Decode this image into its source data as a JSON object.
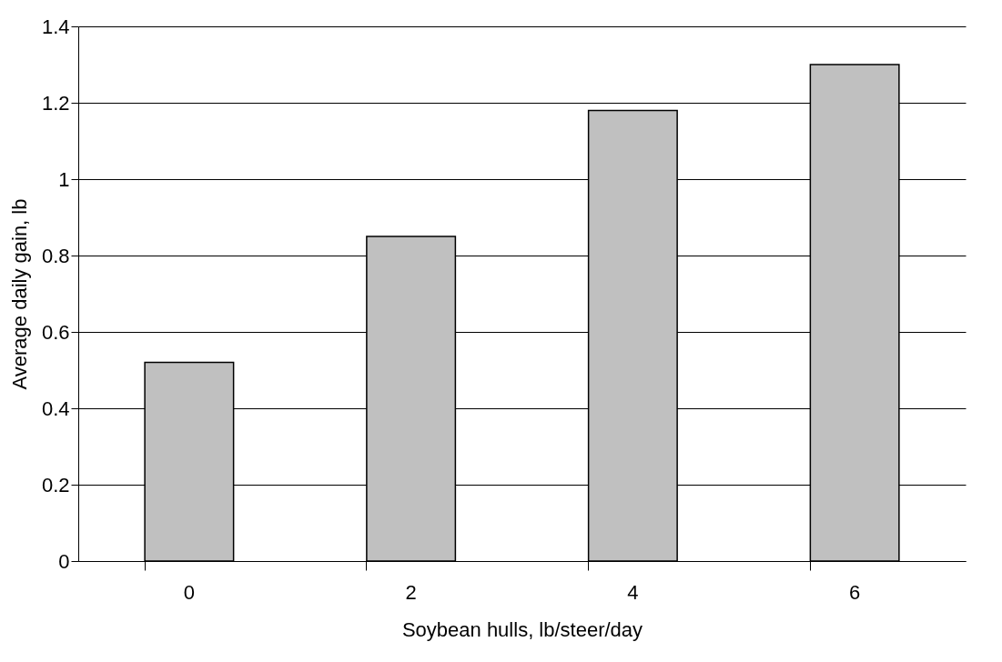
{
  "chart_data": {
    "type": "bar",
    "xlabel": "Soybean hulls, lb/steer/day",
    "ylabel": "Average daily gain, lb",
    "categories": [
      "0",
      "2",
      "4",
      "6"
    ],
    "values": [
      0.52,
      0.85,
      1.18,
      1.3
    ],
    "color": "#c0c0c0",
    "ylim": [
      0,
      1.4
    ],
    "yticks": [
      0,
      0.2,
      0.4,
      0.6,
      0.8,
      1,
      1.2,
      1.4
    ],
    "grid": "y"
  }
}
